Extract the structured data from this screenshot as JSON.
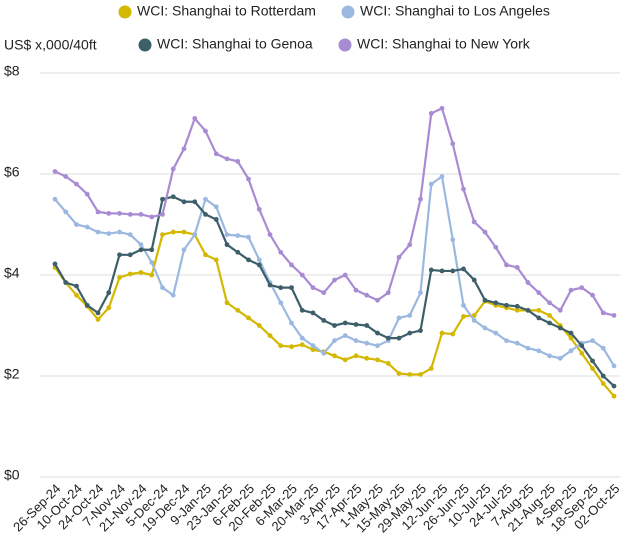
{
  "chart_data": {
    "type": "line",
    "y_label": "US$ x,000/40ft",
    "categories": [
      "26-Sep-24",
      null,
      "10-Oct-24",
      null,
      "24-Oct-24",
      null,
      "7-Nov-24",
      null,
      "21-Nov-24",
      null,
      "5-Dec-24",
      null,
      "19-Dec-24",
      null,
      "9-Jan-25",
      null,
      "23-Jan-25",
      null,
      "6-Feb-25",
      null,
      "20-Feb-25",
      null,
      "6-Mar-25",
      null,
      "20-Mar-25",
      null,
      "3-Apr-25",
      null,
      "17-Apr-25",
      null,
      "1-May-25",
      null,
      "15-May-25",
      null,
      "29-May-25",
      null,
      "12-Jun-25",
      null,
      "26-Jun-25",
      null,
      "10-Jul-25",
      null,
      "24-Jul-25",
      null,
      "7-Aug-25",
      null,
      "21-Aug-25",
      null,
      "4-Sep-25",
      null,
      "18-Sep-25",
      null,
      "02-Oct-25"
    ],
    "series": [
      {
        "name": "WCI: Shanghai to Rotterdam",
        "color": "#d4b800",
        "values": [
          4.15,
          3.85,
          3.6,
          3.38,
          3.12,
          3.35,
          3.95,
          4.02,
          4.05,
          4.0,
          4.8,
          4.85,
          4.85,
          4.8,
          4.4,
          4.3,
          3.45,
          3.3,
          3.15,
          3.0,
          2.8,
          2.6,
          2.58,
          2.62,
          2.52,
          2.48,
          2.4,
          2.32,
          2.4,
          2.35,
          2.32,
          2.25,
          2.05,
          2.03,
          2.03,
          2.15,
          2.85,
          2.83,
          3.18,
          3.2,
          3.48,
          3.4,
          3.35,
          3.3,
          3.3,
          3.3,
          3.2,
          3.0,
          2.75,
          2.45,
          2.15,
          1.85,
          1.6
        ]
      },
      {
        "name": "WCI: Shanghai to Los Angeles",
        "color": "#9bb8e0",
        "values": [
          5.5,
          5.25,
          5.0,
          4.95,
          4.85,
          4.82,
          4.85,
          4.8,
          4.6,
          4.25,
          3.75,
          3.6,
          4.5,
          4.8,
          5.5,
          5.35,
          4.8,
          4.78,
          4.75,
          4.3,
          3.85,
          3.45,
          3.05,
          2.75,
          2.6,
          2.45,
          2.7,
          2.8,
          2.7,
          2.65,
          2.6,
          2.7,
          3.15,
          3.2,
          3.65,
          5.8,
          5.95,
          4.7,
          3.4,
          3.1,
          2.95,
          2.85,
          2.7,
          2.65,
          2.55,
          2.5,
          2.4,
          2.35,
          2.5,
          2.65,
          2.7,
          2.55,
          2.2
        ]
      },
      {
        "name": "WCI: Shanghai to Genoa",
        "color": "#3d5f6a",
        "values": [
          4.22,
          3.85,
          3.78,
          3.4,
          3.25,
          3.65,
          4.4,
          4.4,
          4.5,
          4.5,
          5.5,
          5.55,
          5.45,
          5.45,
          5.2,
          5.1,
          4.6,
          4.45,
          4.3,
          4.2,
          3.8,
          3.75,
          3.75,
          3.3,
          3.25,
          3.1,
          3.0,
          3.05,
          3.02,
          3.0,
          2.85,
          2.75,
          2.75,
          2.85,
          2.9,
          4.1,
          4.08,
          4.08,
          4.12,
          3.9,
          3.5,
          3.45,
          3.4,
          3.38,
          3.3,
          3.15,
          3.05,
          2.95,
          2.85,
          2.6,
          2.3,
          2.0,
          1.8
        ]
      },
      {
        "name": "WCI: Shanghai to New York",
        "color": "#a98bd4",
        "values": [
          6.05,
          5.95,
          5.8,
          5.6,
          5.25,
          5.22,
          5.22,
          5.2,
          5.2,
          5.15,
          5.2,
          6.1,
          6.5,
          7.1,
          6.85,
          6.4,
          6.3,
          6.25,
          5.9,
          5.3,
          4.8,
          4.45,
          4.2,
          4.0,
          3.75,
          3.65,
          3.9,
          4.0,
          3.7,
          3.6,
          3.5,
          3.65,
          4.35,
          4.6,
          5.5,
          7.2,
          7.3,
          6.6,
          5.7,
          5.05,
          4.85,
          4.55,
          4.2,
          4.15,
          3.85,
          3.65,
          3.45,
          3.3,
          3.7,
          3.75,
          3.6,
          3.25,
          3.2
        ]
      }
    ],
    "ylim": [
      0,
      8
    ],
    "yticks": [
      {
        "value": 0,
        "label": "$0"
      },
      {
        "value": 2,
        "label": "$2"
      },
      {
        "value": 4,
        "label": "$4"
      },
      {
        "value": 6,
        "label": "$6"
      },
      {
        "value": 8,
        "label": "$8"
      }
    ],
    "grid": true
  }
}
